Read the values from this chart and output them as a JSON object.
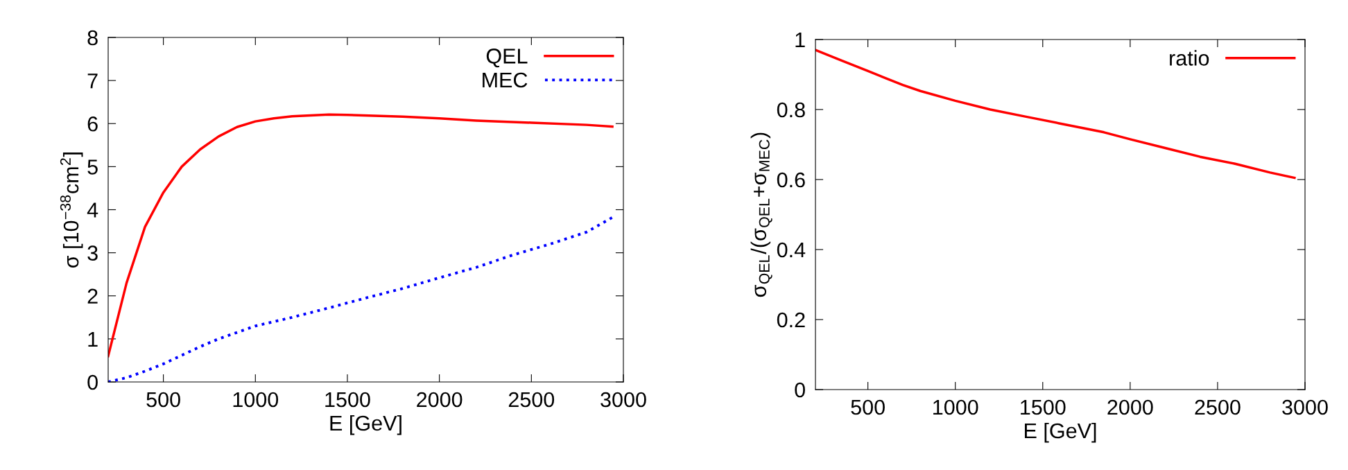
{
  "chart_data": [
    {
      "type": "line",
      "xlabel": "E [GeV]",
      "ylabel": "σ [10$^{−38}$cm$^{2}$]",
      "xlim": [
        200,
        3000
      ],
      "xticks": [
        500,
        1000,
        1500,
        2000,
        2500,
        3000
      ],
      "ylim": [
        0,
        8
      ],
      "yticks": [
        0,
        1,
        2,
        3,
        4,
        5,
        6,
        7,
        8
      ],
      "grid": false,
      "legend": "top right",
      "series": [
        {
          "name": "QEL",
          "color": "#ff0000",
          "line_style": "solid",
          "x": [
            200,
            300,
            400,
            500,
            600,
            700,
            800,
            900,
            1000,
            1100,
            1200,
            1400,
            1500,
            1800,
            2000,
            2200,
            2500,
            2800,
            2940
          ],
          "values": [
            0.6,
            2.3,
            3.6,
            4.4,
            5.0,
            5.4,
            5.7,
            5.92,
            6.05,
            6.12,
            6.17,
            6.21,
            6.2,
            6.16,
            6.12,
            6.07,
            6.02,
            5.97,
            5.93
          ]
        },
        {
          "name": "MEC",
          "color": "#0000ff",
          "line_style": "dotted",
          "x": [
            200,
            300,
            400,
            500,
            600,
            700,
            800,
            900,
            1000,
            1200,
            1400,
            1600,
            1800,
            2000,
            2200,
            2400,
            2600,
            2800,
            2940
          ],
          "values": [
            0,
            0.1,
            0.25,
            0.42,
            0.62,
            0.82,
            1.0,
            1.15,
            1.3,
            1.5,
            1.72,
            1.95,
            2.17,
            2.42,
            2.66,
            2.95,
            3.2,
            3.48,
            3.82
          ]
        }
      ]
    },
    {
      "type": "line",
      "xlabel": "E [GeV]",
      "ylabel": "σ$_{QEL}$/(σ$_{QEL}$+σ$_{MEC}$)",
      "xlim": [
        200,
        3000
      ],
      "xticks": [
        500,
        1000,
        1500,
        2000,
        2500,
        3000
      ],
      "ylim": [
        0,
        1
      ],
      "yticks": [
        0,
        0.2,
        0.4,
        0.6,
        0.8,
        1
      ],
      "grid": false,
      "legend": "top right",
      "series": [
        {
          "name": "ratio",
          "color": "#ff0000",
          "line_style": "solid",
          "x": [
            200,
            350,
            500,
            600,
            700,
            800,
            1000,
            1200,
            1400,
            1600,
            1850,
            2000,
            2200,
            2400,
            2600,
            2800,
            2940
          ],
          "values": [
            0.97,
            0.94,
            0.91,
            0.89,
            0.87,
            0.853,
            0.825,
            0.8,
            0.78,
            0.76,
            0.735,
            0.715,
            0.69,
            0.665,
            0.645,
            0.62,
            0.605
          ]
        }
      ]
    }
  ]
}
